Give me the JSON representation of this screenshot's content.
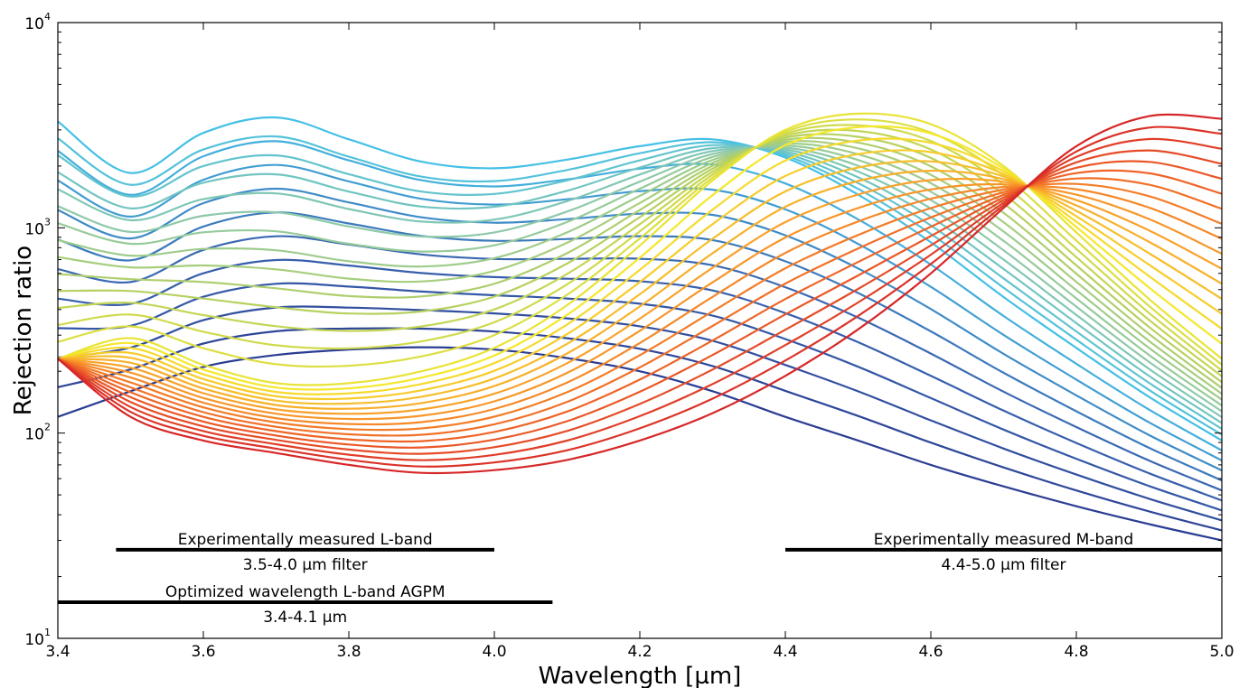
{
  "chart_data": {
    "type": "line",
    "xlabel": "Wavelength [µm]",
    "ylabel": "Rejection ratio",
    "xlim": [
      3.4,
      5.0
    ],
    "ylim": [
      10,
      10000
    ],
    "yscale": "log",
    "grid": false,
    "legend": "none",
    "x_ticks": [
      "3.4",
      "3.6",
      "3.8",
      "4.0",
      "4.2",
      "4.4",
      "4.6",
      "4.8",
      "5.0"
    ],
    "x_tick_values": [
      3.4,
      3.6,
      3.8,
      4.0,
      4.2,
      4.4,
      4.6,
      4.8,
      5.0
    ],
    "y_ticks": [
      {
        "value": 10,
        "base": "10",
        "exp": "1"
      },
      {
        "value": 100,
        "base": "10",
        "exp": "2"
      },
      {
        "value": 1000,
        "base": "10",
        "exp": "3"
      },
      {
        "value": 10000,
        "base": "10",
        "exp": "4"
      }
    ],
    "colormap": [
      "#2b3d93",
      "#3a68b2",
      "#45c0e6",
      "#8ec9a9",
      "#b7d160",
      "#f5e82c",
      "#f9a22a",
      "#ef6427",
      "#d62728"
    ],
    "series_model": {
      "count": 41,
      "description_x": [
        3.4,
        3.5,
        3.6,
        3.7,
        3.8,
        3.9,
        4.0,
        4.1,
        4.2,
        4.3,
        4.4,
        4.5,
        4.6,
        4.7,
        4.8,
        4.9,
        5.0
      ],
      "first_series_y": [
        120,
        160,
        210,
        240,
        255,
        262,
        255,
        232,
        200,
        160,
        120,
        92,
        70,
        55,
        44,
        36,
        30
      ],
      "shortest_wavelength_optimized_y": [
        3300,
        1850,
        2900,
        3450,
        2700,
        2100,
        1950,
        2150,
        2500,
        2700,
        2200,
        1450,
        850,
        460,
        260,
        150,
        92
      ],
      "middle_series_y": [
        230,
        290,
        215,
        175,
        175,
        200,
        260,
        420,
        820,
        1700,
        3000,
        3600,
        3200,
        2000,
        950,
        450,
        230
      ],
      "last_series_y": [
        230,
        120,
        92,
        80,
        70,
        64,
        66,
        74,
        92,
        125,
        190,
        320,
        600,
        1250,
        2500,
        3500,
        3400
      ]
    },
    "bands": [
      {
        "label": "Experimentally measured L-band",
        "sublabel": "3.5-4.0 µm filter",
        "x_start": 3.48,
        "x_end": 4.0,
        "y": 27
      },
      {
        "label": "Experimentally measured M-band",
        "sublabel": "4.4-5.0 µm filter",
        "x_start": 4.4,
        "x_end": 5.0,
        "y": 27
      },
      {
        "label": "Optimized wavelength L-band AGPM",
        "sublabel": "3.4-4.1 µm",
        "x_start": 3.4,
        "x_end": 4.08,
        "y": 15
      }
    ]
  }
}
